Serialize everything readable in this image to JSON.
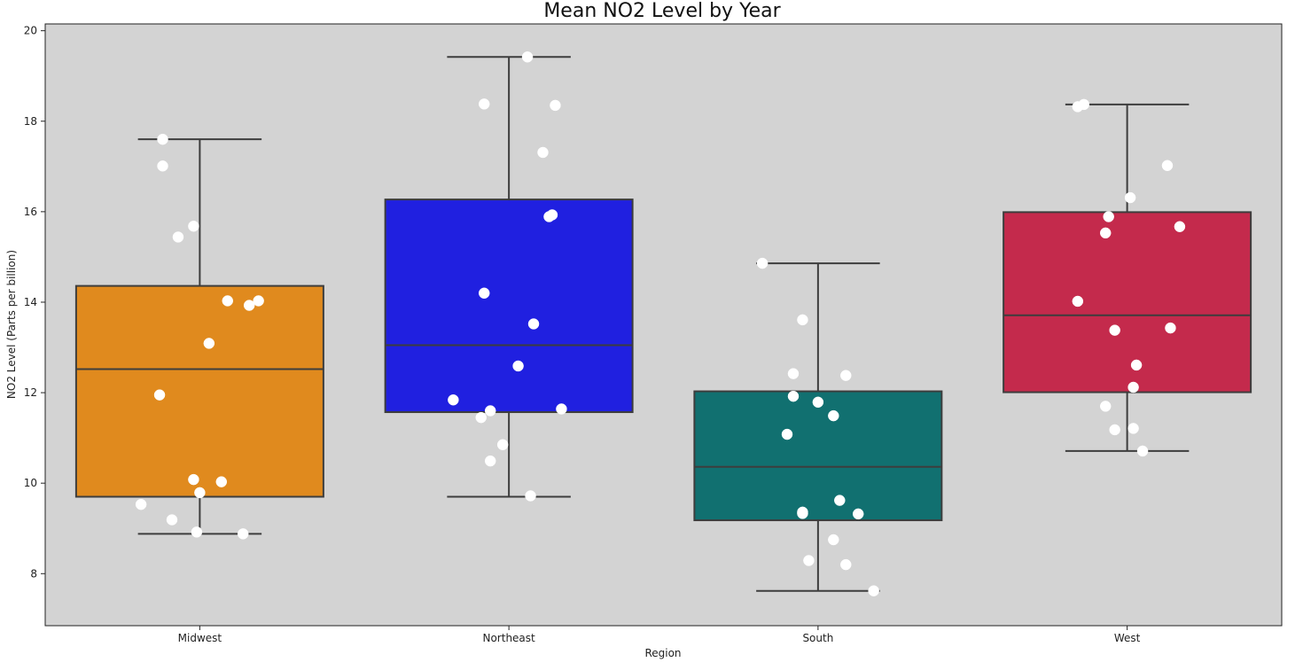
{
  "chart_data": {
    "type": "box",
    "title": "Mean NO2 Level by Year",
    "xlabel": "Region",
    "ylabel": "NO2 Level (Parts per billion)",
    "ylim": [
      6.85,
      20.15
    ],
    "yticks": [
      8,
      10,
      12,
      14,
      16,
      18,
      20
    ],
    "grid": false,
    "plot_background": "#d3d3d3",
    "categories": [
      "Midwest",
      "Northeast",
      "South",
      "West"
    ],
    "series": [
      {
        "category": "Midwest",
        "color": "#e08a1e",
        "whisker_low": 8.88,
        "q1": 9.7,
        "median": 12.52,
        "q3": 14.36,
        "whisker_high": 17.6,
        "points": [
          [
            -0.12,
            17.6
          ],
          [
            -0.12,
            17.01
          ],
          [
            -0.07,
            15.44
          ],
          [
            -0.02,
            15.68
          ],
          [
            0.09,
            14.03
          ],
          [
            0.19,
            14.03
          ],
          [
            0.16,
            13.93
          ],
          [
            0.03,
            13.09
          ],
          [
            -0.13,
            11.95
          ],
          [
            -0.02,
            10.08
          ],
          [
            0.07,
            10.03
          ],
          [
            0.0,
            9.79
          ],
          [
            -0.19,
            9.53
          ],
          [
            -0.09,
            9.19
          ],
          [
            -0.01,
            8.92
          ],
          [
            0.14,
            8.88
          ]
        ]
      },
      {
        "category": "Northeast",
        "color": "#2020e0",
        "whisker_low": 9.7,
        "q1": 11.57,
        "median": 13.05,
        "q3": 16.27,
        "whisker_high": 19.42,
        "points": [
          [
            0.06,
            19.42
          ],
          [
            -0.08,
            18.38
          ],
          [
            0.15,
            18.35
          ],
          [
            0.11,
            17.31
          ],
          [
            0.14,
            15.93
          ],
          [
            0.13,
            15.89
          ],
          [
            -0.08,
            14.2
          ],
          [
            0.08,
            13.52
          ],
          [
            0.03,
            12.59
          ],
          [
            -0.18,
            11.84
          ],
          [
            0.17,
            11.64
          ],
          [
            -0.06,
            11.6
          ],
          [
            -0.09,
            11.45
          ],
          [
            -0.02,
            10.85
          ],
          [
            -0.06,
            10.49
          ],
          [
            0.07,
            9.72
          ]
        ]
      },
      {
        "category": "South",
        "color": "#117070",
        "whisker_low": 7.62,
        "q1": 9.18,
        "median": 10.36,
        "q3": 12.03,
        "whisker_high": 14.86,
        "points": [
          [
            -0.18,
            14.86
          ],
          [
            -0.05,
            13.61
          ],
          [
            -0.08,
            12.42
          ],
          [
            0.09,
            12.38
          ],
          [
            -0.08,
            11.92
          ],
          [
            0.0,
            11.79
          ],
          [
            0.05,
            11.49
          ],
          [
            -0.1,
            11.08
          ],
          [
            0.07,
            9.62
          ],
          [
            -0.05,
            9.36
          ],
          [
            -0.05,
            9.33
          ],
          [
            0.13,
            9.32
          ],
          [
            0.05,
            8.75
          ],
          [
            -0.03,
            8.29
          ],
          [
            0.09,
            8.2
          ],
          [
            0.18,
            7.62
          ]
        ]
      },
      {
        "category": "West",
        "color": "#c42a4c",
        "whisker_low": 10.71,
        "q1": 12.01,
        "median": 13.71,
        "q3": 15.99,
        "whisker_high": 18.37,
        "points": [
          [
            -0.14,
            18.37
          ],
          [
            -0.16,
            18.32
          ],
          [
            0.13,
            17.02
          ],
          [
            0.01,
            16.31
          ],
          [
            -0.06,
            15.89
          ],
          [
            0.17,
            15.67
          ],
          [
            -0.07,
            15.53
          ],
          [
            -0.16,
            14.02
          ],
          [
            -0.04,
            13.38
          ],
          [
            0.14,
            13.43
          ],
          [
            0.03,
            12.61
          ],
          [
            0.02,
            12.12
          ],
          [
            -0.07,
            11.7
          ],
          [
            -0.04,
            11.18
          ],
          [
            0.02,
            11.21
          ],
          [
            0.05,
            10.71
          ]
        ]
      }
    ]
  }
}
